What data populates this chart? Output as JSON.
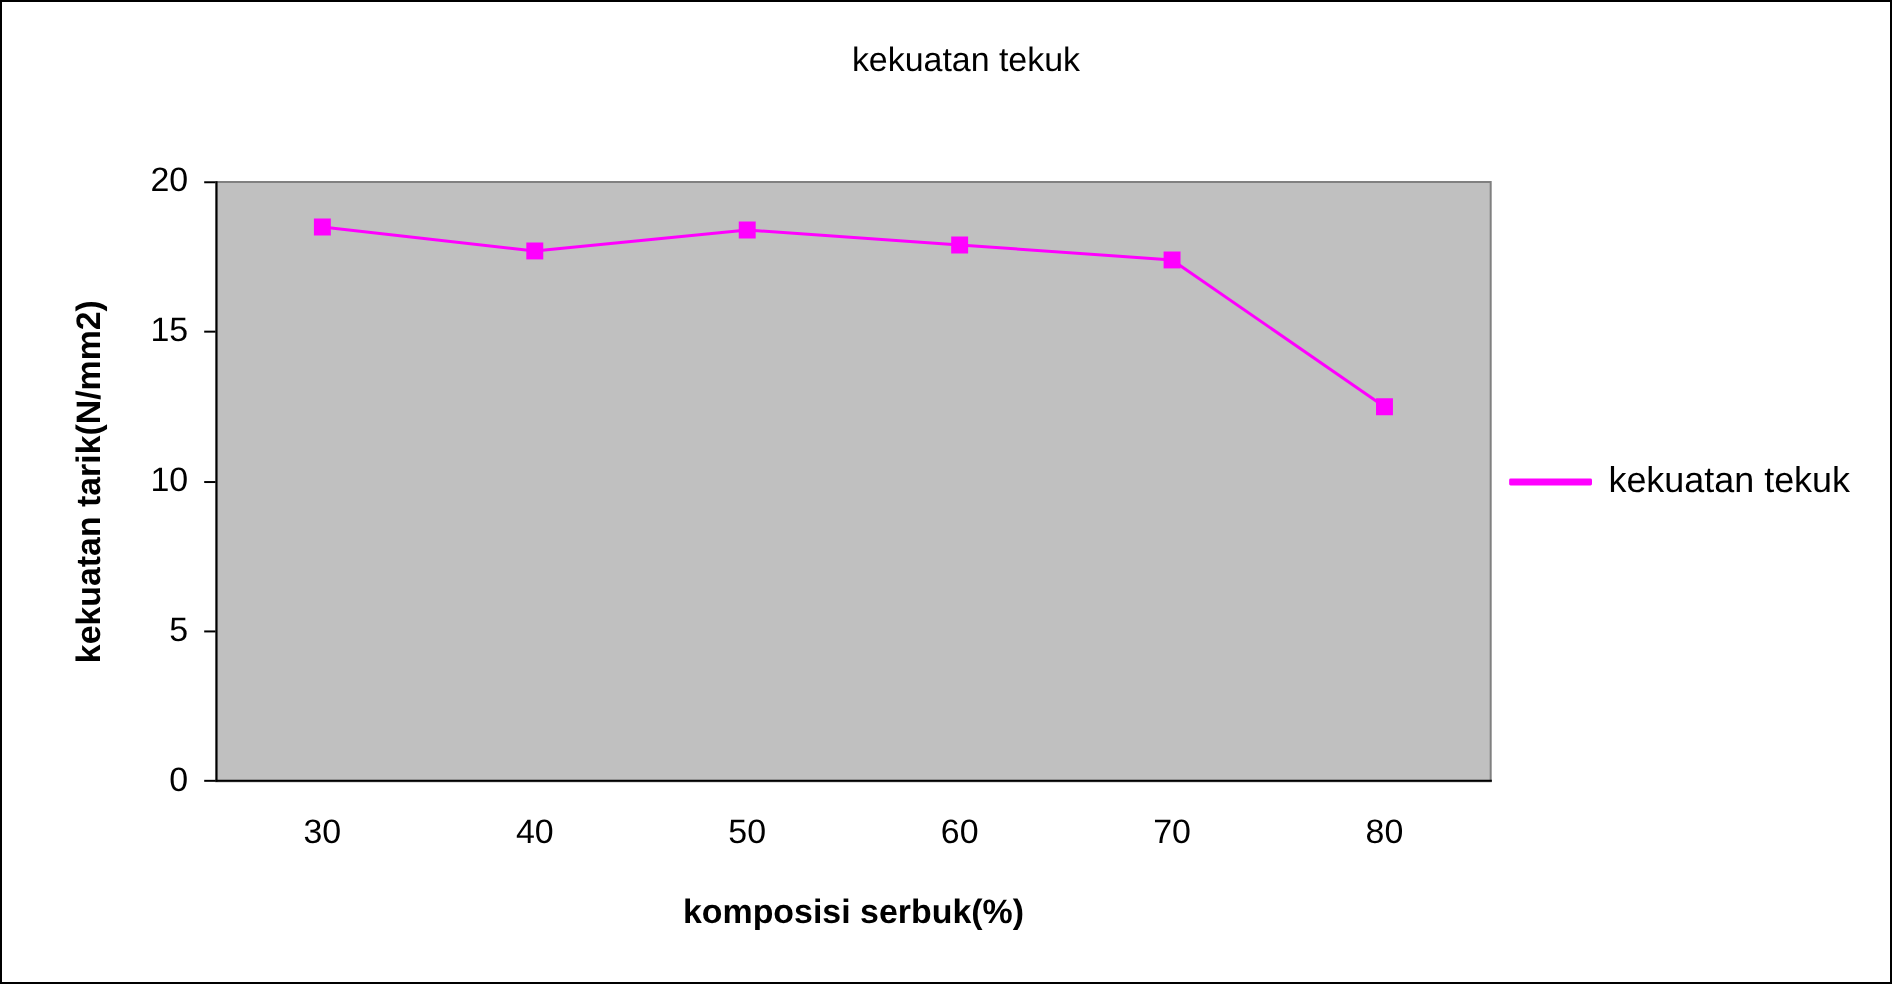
{
  "chart_data": {
    "type": "line",
    "title": "kekuatan tekuk",
    "xlabel": "komposisi serbuk(%)",
    "ylabel": "kekuatan tarik(N/mm2)",
    "categories": [
      "30",
      "40",
      "50",
      "60",
      "70",
      "80"
    ],
    "series": [
      {
        "name": "kekuatan tekuk",
        "color": "#ff00ff",
        "values": [
          18.5,
          17.7,
          18.4,
          17.9,
          17.4,
          12.5
        ]
      }
    ],
    "ylim": [
      0,
      20
    ],
    "yticks": [
      0,
      5,
      10,
      15,
      20
    ],
    "grid": false,
    "legend": "right",
    "marker": "square",
    "line_style": "solid"
  }
}
